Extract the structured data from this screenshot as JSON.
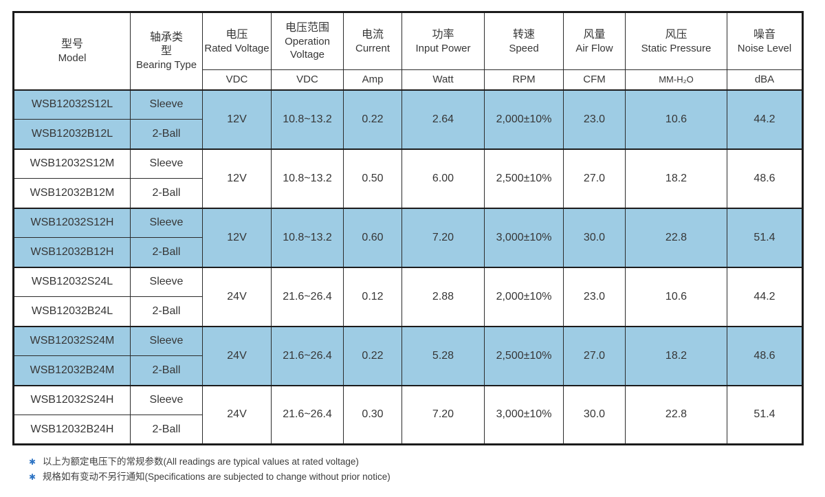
{
  "table": {
    "columns": [
      {
        "key": "model",
        "zh": "型号",
        "en": "Model",
        "unit": null
      },
      {
        "key": "bearing",
        "zh": "轴承类型",
        "en": "Bearing Type",
        "unit": null
      },
      {
        "key": "rated_voltage",
        "zh": "电压",
        "en": "Rated Voltage",
        "unit": "VDC"
      },
      {
        "key": "operation_voltage",
        "zh": "电压范围",
        "en": "Operation Voltage",
        "unit": "VDC"
      },
      {
        "key": "current",
        "zh": "电流",
        "en": "Current",
        "unit": "Amp"
      },
      {
        "key": "input_power",
        "zh": "功率",
        "en": "Input Power",
        "unit": "Watt"
      },
      {
        "key": "speed",
        "zh": "转速",
        "en": "Speed",
        "unit": "RPM"
      },
      {
        "key": "air_flow",
        "zh": "风量",
        "en": "Air Flow",
        "unit": "CFM"
      },
      {
        "key": "static_pressure",
        "zh": "风压",
        "en": "Static Pressure",
        "unit": "MM-H₂O"
      },
      {
        "key": "noise",
        "zh": "噪音",
        "en": "Noise Level",
        "unit": "dBA"
      }
    ],
    "groups": [
      {
        "highlight": true,
        "rows": [
          {
            "model": "WSB12032S12L",
            "bearing": "Sleeve"
          },
          {
            "model": "WSB12032B12L",
            "bearing": "2-Ball"
          }
        ],
        "rated_voltage": "12V",
        "operation_voltage": "10.8~13.2",
        "current": "0.22",
        "input_power": "2.64",
        "speed": "2,000±10%",
        "air_flow": "23.0",
        "static_pressure": "10.6",
        "noise": "44.2"
      },
      {
        "highlight": false,
        "rows": [
          {
            "model": "WSB12032S12M",
            "bearing": "Sleeve"
          },
          {
            "model": "WSB12032B12M",
            "bearing": "2-Ball"
          }
        ],
        "rated_voltage": "12V",
        "operation_voltage": "10.8~13.2",
        "current": "0.50",
        "input_power": "6.00",
        "speed": "2,500±10%",
        "air_flow": "27.0",
        "static_pressure": "18.2",
        "noise": "48.6"
      },
      {
        "highlight": true,
        "rows": [
          {
            "model": "WSB12032S12H",
            "bearing": "Sleeve"
          },
          {
            "model": "WSB12032B12H",
            "bearing": "2-Ball"
          }
        ],
        "rated_voltage": "12V",
        "operation_voltage": "10.8~13.2",
        "current": "0.60",
        "input_power": "7.20",
        "speed": "3,000±10%",
        "air_flow": "30.0",
        "static_pressure": "22.8",
        "noise": "51.4"
      },
      {
        "highlight": false,
        "rows": [
          {
            "model": "WSB12032S24L",
            "bearing": "Sleeve"
          },
          {
            "model": "WSB12032B24L",
            "bearing": "2-Ball"
          }
        ],
        "rated_voltage": "24V",
        "operation_voltage": "21.6~26.4",
        "current": "0.12",
        "input_power": "2.88",
        "speed": "2,000±10%",
        "air_flow": "23.0",
        "static_pressure": "10.6",
        "noise": "44.2"
      },
      {
        "highlight": true,
        "rows": [
          {
            "model": "WSB12032S24M",
            "bearing": "Sleeve"
          },
          {
            "model": "WSB12032B24M",
            "bearing": "2-Ball"
          }
        ],
        "rated_voltage": "24V",
        "operation_voltage": "21.6~26.4",
        "current": "0.22",
        "input_power": "5.28",
        "speed": "2,500±10%",
        "air_flow": "27.0",
        "static_pressure": "18.2",
        "noise": "48.6"
      },
      {
        "highlight": false,
        "rows": [
          {
            "model": "WSB12032S24H",
            "bearing": "Sleeve"
          },
          {
            "model": "WSB12032B24H",
            "bearing": "2-Ball"
          }
        ],
        "rated_voltage": "24V",
        "operation_voltage": "21.6~26.4",
        "current": "0.30",
        "input_power": "7.20",
        "speed": "3,000±10%",
        "air_flow": "30.0",
        "static_pressure": "22.8",
        "noise": "51.4"
      }
    ]
  },
  "notes": [
    {
      "bullet": "✱",
      "text": "以上为额定电压下的常规参数(All readings are typical values at rated voltage)"
    },
    {
      "bullet": "✱",
      "text": "规格如有变动不另行通知(Specifications are subjected to change without prior notice)"
    }
  ],
  "colors": {
    "highlight_row": "#9ECCE4",
    "border": "#1b1b1b",
    "text": "#363636",
    "note_star": "#2E74C4"
  }
}
